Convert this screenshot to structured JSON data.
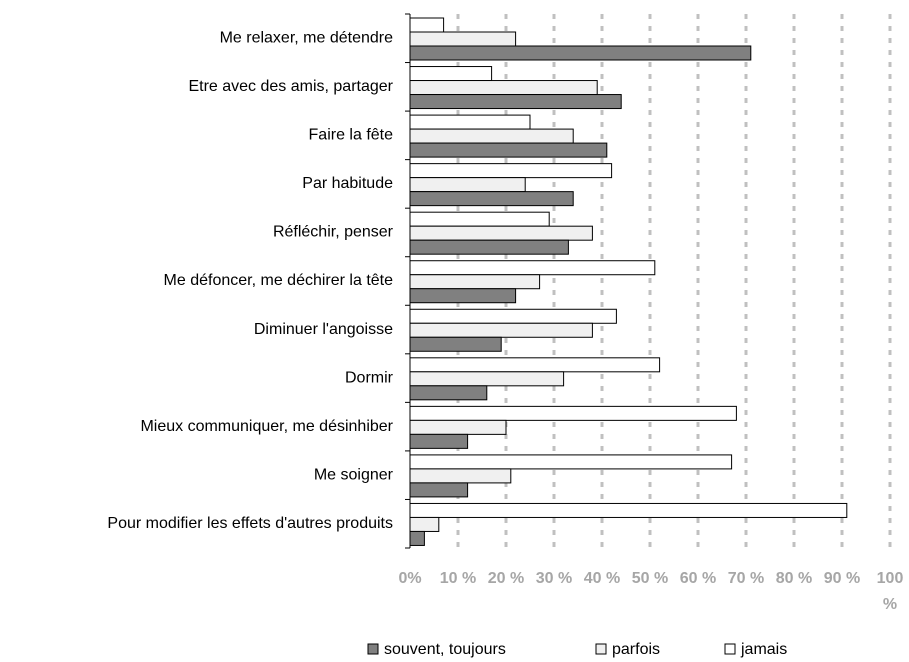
{
  "chart_data": {
    "type": "hbar",
    "categories": [
      "Me relaxer, me détendre",
      "Etre avec des amis, partager",
      "Faire la fête",
      "Par habitude",
      "Réfléchir, penser",
      "Me défoncer, me déchirer la tête",
      "Diminuer l'angoisse",
      "Dormir",
      "Mieux communiquer, me désinhiber",
      "Me soigner",
      "Pour modifier les effets d'autres produits"
    ],
    "series": [
      {
        "name": "souvent, toujours",
        "color": "#808080",
        "values": [
          71,
          44,
          41,
          34,
          33,
          22,
          19,
          16,
          12,
          12,
          3
        ]
      },
      {
        "name": "parfois",
        "color": "#f0f0f0",
        "values": [
          22,
          39,
          34,
          24,
          38,
          27,
          38,
          32,
          20,
          21,
          6
        ]
      },
      {
        "name": "jamais",
        "color": "#ffffff",
        "values": [
          7,
          17,
          25,
          42,
          29,
          51,
          43,
          52,
          68,
          67,
          91
        ]
      }
    ],
    "xlim": [
      0,
      100
    ],
    "xticks": [
      {
        "value": 0,
        "label": "0%"
      },
      {
        "value": 10,
        "label": "10 %"
      },
      {
        "value": 20,
        "label": "20 %"
      },
      {
        "value": 30,
        "label": "30 %"
      },
      {
        "value": 40,
        "label": "40 %"
      },
      {
        "value": 50,
        "label": "50 %"
      },
      {
        "value": 60,
        "label": "60 %"
      },
      {
        "value": 70,
        "label": "70 %"
      },
      {
        "value": 80,
        "label": "80 %"
      },
      {
        "value": 90,
        "label": "90 %"
      },
      {
        "value": 100,
        "label": "100 %"
      }
    ],
    "grid": true,
    "legend": "bottom"
  }
}
